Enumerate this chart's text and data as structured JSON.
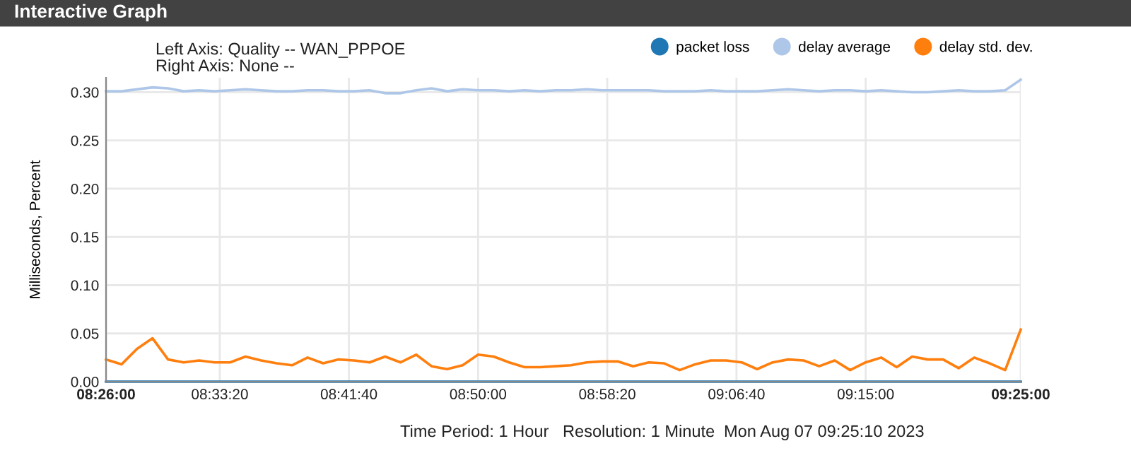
{
  "chart_data": {
    "type": "line",
    "title": "Interactive Graph",
    "subtitle": "Left Axis: Quality -- WAN_PPPOE\nRight Axis: None --",
    "ylabel": "Milliseconds, Percent",
    "x": [
      8.4333,
      8.45,
      8.4667,
      8.4833,
      8.5,
      8.5167,
      8.5333,
      8.55,
      8.5667,
      8.5833,
      8.6,
      8.6167,
      8.6333,
      8.65,
      8.6667,
      8.6833,
      8.7,
      8.7167,
      8.7333,
      8.75,
      8.7667,
      8.7833,
      8.8,
      8.8167,
      8.8333,
      8.85,
      8.8667,
      8.8833,
      8.9,
      8.9167,
      8.9333,
      8.95,
      8.9667,
      8.9833,
      9,
      9.0167,
      9.0333,
      9.05,
      9.0667,
      9.0833,
      9.1,
      9.1167,
      9.1333,
      9.15,
      9.1667,
      9.1833,
      9.2,
      9.2167,
      9.2333,
      9.25,
      9.2667,
      9.2833,
      9.3,
      9.3167,
      9.3333,
      9.35,
      9.3667,
      9.3833,
      9.4,
      9.4167
    ],
    "series": [
      {
        "name": "packet loss",
        "color": "#1f77b4",
        "values": [
          0,
          0,
          0,
          0,
          0,
          0,
          0,
          0,
          0,
          0,
          0,
          0,
          0,
          0,
          0,
          0,
          0,
          0,
          0,
          0,
          0,
          0,
          0,
          0,
          0,
          0,
          0,
          0,
          0,
          0,
          0,
          0,
          0,
          0,
          0,
          0,
          0,
          0,
          0,
          0,
          0,
          0,
          0,
          0,
          0,
          0,
          0,
          0,
          0,
          0,
          0,
          0,
          0,
          0,
          0,
          0,
          0,
          0,
          0,
          0
        ]
      },
      {
        "name": "delay average",
        "color": "#aec7e8",
        "values": [
          0.301,
          0.301,
          0.303,
          0.305,
          0.304,
          0.301,
          0.302,
          0.301,
          0.302,
          0.303,
          0.302,
          0.301,
          0.301,
          0.302,
          0.302,
          0.301,
          0.301,
          0.302,
          0.299,
          0.299,
          0.302,
          0.304,
          0.301,
          0.303,
          0.302,
          0.302,
          0.301,
          0.302,
          0.301,
          0.302,
          0.302,
          0.303,
          0.302,
          0.302,
          0.302,
          0.302,
          0.301,
          0.301,
          0.301,
          0.302,
          0.301,
          0.301,
          0.301,
          0.302,
          0.303,
          0.302,
          0.301,
          0.302,
          0.302,
          0.301,
          0.302,
          0.301,
          0.3,
          0.3,
          0.301,
          0.302,
          0.301,
          0.301,
          0.302,
          0.313
        ]
      },
      {
        "name": "delay std. dev.",
        "color": "#ff7f0e",
        "values": [
          0.023,
          0.018,
          0.034,
          0.045,
          0.023,
          0.02,
          0.022,
          0.02,
          0.02,
          0.026,
          0.022,
          0.019,
          0.017,
          0.025,
          0.019,
          0.023,
          0.022,
          0.02,
          0.026,
          0.02,
          0.028,
          0.016,
          0.013,
          0.017,
          0.028,
          0.026,
          0.02,
          0.015,
          0.015,
          0.016,
          0.017,
          0.02,
          0.021,
          0.021,
          0.016,
          0.02,
          0.019,
          0.012,
          0.018,
          0.022,
          0.022,
          0.02,
          0.013,
          0.02,
          0.023,
          0.022,
          0.016,
          0.022,
          0.012,
          0.02,
          0.025,
          0.015,
          0.026,
          0.023,
          0.023,
          0.014,
          0.025,
          0.019,
          0.012,
          0.054
        ]
      }
    ],
    "xlim": [
      8.4333,
      9.4167
    ],
    "xticks": [
      {
        "value": 8.4333,
        "label": "08:26:00"
      },
      {
        "value": 8.5556,
        "label": "08:33:20"
      },
      {
        "value": 8.6944,
        "label": "08:41:40"
      },
      {
        "value": 8.8333,
        "label": "08:50:00"
      },
      {
        "value": 8.9722,
        "label": "08:58:20"
      },
      {
        "value": 9.1111,
        "label": "09:06:40"
      },
      {
        "value": 9.25,
        "label": "09:15:00"
      },
      {
        "value": 9.4167,
        "label": "09:25:00"
      }
    ],
    "ylim": [
      0,
      0.315
    ],
    "yticks": [
      {
        "value": 0,
        "label": "0.00"
      },
      {
        "value": 0.05,
        "label": "0.05"
      },
      {
        "value": 0.1,
        "label": "0.10"
      },
      {
        "value": 0.15,
        "label": "0.15"
      },
      {
        "value": 0.2,
        "label": "0.20"
      },
      {
        "value": 0.25,
        "label": "0.25"
      },
      {
        "value": 0.3,
        "label": "0.30"
      }
    ],
    "grid": true,
    "legend": "top right",
    "marker": "none",
    "line_style": "solid",
    "annotations": [
      "Time Period: 1 Hour",
      "Resolution: 1 Minute",
      "Mon Aug 07 09:25:10 2023"
    ]
  }
}
